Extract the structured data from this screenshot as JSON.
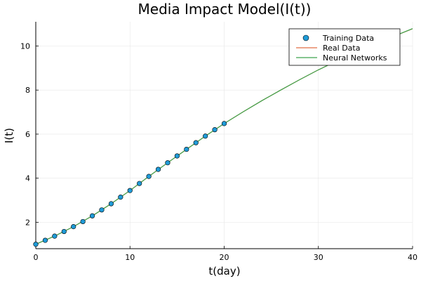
{
  "chart_data": {
    "type": "line",
    "title": "Media Impact Model(I(t))",
    "xlabel": "t(day)",
    "ylabel": "I(t)",
    "xlim": [
      0,
      40
    ],
    "ylim": [
      0.8,
      11.1
    ],
    "xticks": [
      0,
      10,
      20,
      30,
      40
    ],
    "yticks": [
      2,
      4,
      6,
      8,
      10
    ],
    "grid": true,
    "legend_position": "top-right",
    "series": [
      {
        "name": "Training Data",
        "kind": "scatter",
        "color": "#1f9bd7",
        "x": [
          0,
          1,
          2,
          3,
          4,
          5,
          6,
          7,
          8,
          9,
          10,
          11,
          12,
          13,
          14,
          15,
          16,
          17,
          18,
          19,
          20
        ],
        "y": [
          1.0,
          1.18,
          1.37,
          1.58,
          1.8,
          2.03,
          2.29,
          2.56,
          2.84,
          3.14,
          3.44,
          3.76,
          4.08,
          4.4,
          4.7,
          5.01,
          5.31,
          5.61,
          5.91,
          6.2,
          6.48
        ]
      },
      {
        "name": "Real Data",
        "kind": "line",
        "color": "#e26f46",
        "x": [
          0,
          2,
          4,
          6,
          8,
          10,
          12,
          14,
          16,
          18,
          20,
          22,
          24,
          26,
          28,
          30,
          32,
          34,
          36,
          38,
          40
        ],
        "y": [
          1.0,
          1.37,
          1.8,
          2.29,
          2.84,
          3.44,
          4.08,
          4.7,
          5.31,
          5.91,
          6.48,
          7.01,
          7.52,
          8.0,
          8.47,
          8.92,
          9.33,
          9.71,
          10.08,
          10.44,
          10.78
        ]
      },
      {
        "name": "Neural Networks",
        "kind": "line",
        "color": "#3da44d",
        "x": [
          0,
          2,
          4,
          6,
          8,
          10,
          12,
          14,
          16,
          18,
          20,
          22,
          24,
          26,
          28,
          30,
          32,
          34,
          36,
          38,
          40
        ],
        "y": [
          1.0,
          1.37,
          1.8,
          2.29,
          2.84,
          3.44,
          4.08,
          4.7,
          5.31,
          5.91,
          6.48,
          7.01,
          7.52,
          8.0,
          8.47,
          8.92,
          9.33,
          9.71,
          10.08,
          10.44,
          10.79
        ]
      }
    ]
  }
}
